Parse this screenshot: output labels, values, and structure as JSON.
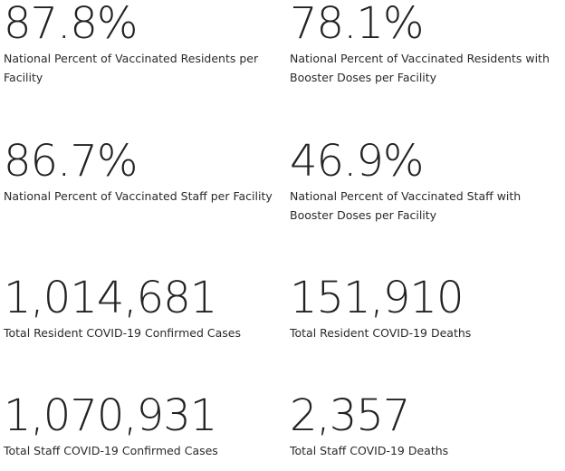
{
  "stats": [
    {
      "value": "87.8%",
      "label": "National Percent of Vaccinated Residents per Facility"
    },
    {
      "value": "78.1%",
      "label": "National Percent of Vaccinated Residents with Booster Doses per Facility"
    },
    {
      "value": "86.7%",
      "label": "National Percent of Vaccinated Staff per Facility"
    },
    {
      "value": "46.9%",
      "label": "National Percent of Vaccinated Staff with Booster Doses per Facility"
    },
    {
      "value": "1,014,681",
      "label": "Total Resident COVID-19 Confirmed Cases"
    },
    {
      "value": "151,910",
      "label": "Total Resident COVID-19 Deaths"
    },
    {
      "value": "1,070,931",
      "label": "Total Staff COVID-19 Confirmed Cases"
    },
    {
      "value": "2,357",
      "label": "Total Staff COVID-19 Deaths"
    }
  ]
}
